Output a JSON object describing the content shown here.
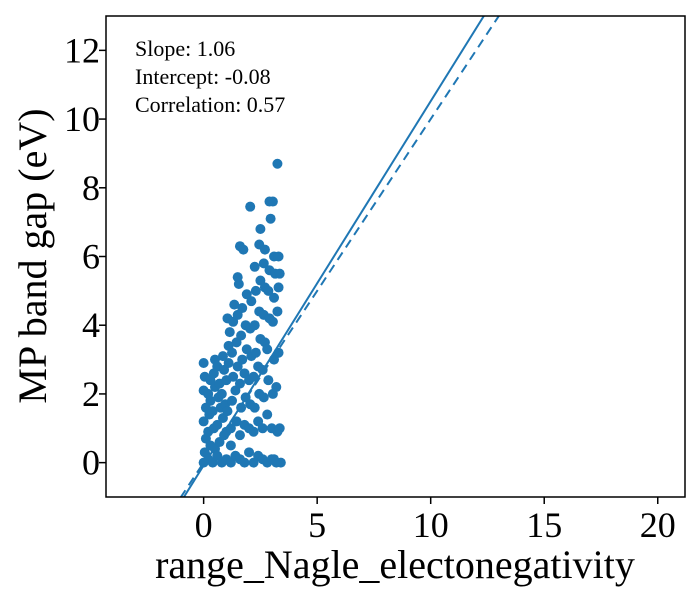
{
  "chart_data": {
    "type": "scatter",
    "title": "",
    "xlabel": "range_Nagle_electonegativity",
    "ylabel": "MP band gap (eV)",
    "xlim": [
      -4.3,
      21.2
    ],
    "ylim": [
      -1.0,
      13.0
    ],
    "x_ticks": [
      0,
      5,
      10,
      15,
      20
    ],
    "y_ticks": [
      0,
      2,
      4,
      6,
      8,
      10,
      12
    ],
    "grid": false,
    "legend": "none",
    "point_color": "#1f77b4",
    "annotations": [
      "Slope: 1.06",
      "Intercept: -0.08",
      "Correlation: 0.57"
    ],
    "fit_line": {
      "slope": 1.06,
      "intercept": -0.08,
      "style": "solid",
      "color": "#1f77b4"
    },
    "identity_line": {
      "slope": 1.0,
      "intercept": 0.0,
      "style": "dashed",
      "color": "#1f77b4"
    },
    "points": [
      [
        0.0,
        0.0
      ],
      [
        0.05,
        0.3
      ],
      [
        0.1,
        0.7
      ],
      [
        0.0,
        1.2
      ],
      [
        0.1,
        1.6
      ],
      [
        0.0,
        2.1
      ],
      [
        0.05,
        2.5
      ],
      [
        0.0,
        2.9
      ],
      [
        0.2,
        0.1
      ],
      [
        0.2,
        0.9
      ],
      [
        0.25,
        1.4
      ],
      [
        0.2,
        2.0
      ],
      [
        0.3,
        2.4
      ],
      [
        0.3,
        0.5
      ],
      [
        0.3,
        1.8
      ],
      [
        0.4,
        0.0
      ],
      [
        0.45,
        1.0
      ],
      [
        0.4,
        1.5
      ],
      [
        0.5,
        2.2
      ],
      [
        0.45,
        2.6
      ],
      [
        0.5,
        3.0
      ],
      [
        0.5,
        0.4
      ],
      [
        0.6,
        0.2
      ],
      [
        0.6,
        1.1
      ],
      [
        0.65,
        1.9
      ],
      [
        0.6,
        2.8
      ],
      [
        0.7,
        0.6
      ],
      [
        0.75,
        1.6
      ],
      [
        0.7,
        2.3
      ],
      [
        0.8,
        0.0
      ],
      [
        0.85,
        1.3
      ],
      [
        0.8,
        2.0
      ],
      [
        0.9,
        2.7
      ],
      [
        0.85,
        3.1
      ],
      [
        0.9,
        0.8
      ],
      [
        0.95,
        1.7
      ],
      [
        1.0,
        0.1
      ],
      [
        1.0,
        0.9
      ],
      [
        1.05,
        1.5
      ],
      [
        1.0,
        2.4
      ],
      [
        1.1,
        2.9
      ],
      [
        1.1,
        3.4
      ],
      [
        1.15,
        3.8
      ],
      [
        1.05,
        4.2
      ],
      [
        1.2,
        0.0
      ],
      [
        1.2,
        1.0
      ],
      [
        1.25,
        1.8
      ],
      [
        1.3,
        2.5
      ],
      [
        1.25,
        3.2
      ],
      [
        1.3,
        4.1
      ],
      [
        1.35,
        4.6
      ],
      [
        1.2,
        0.5
      ],
      [
        1.4,
        0.2
      ],
      [
        1.45,
        1.2
      ],
      [
        1.4,
        2.1
      ],
      [
        1.5,
        2.8
      ],
      [
        1.45,
        3.5
      ],
      [
        1.5,
        4.3
      ],
      [
        1.55,
        5.2
      ],
      [
        1.5,
        5.4
      ],
      [
        1.6,
        0.1
      ],
      [
        1.6,
        0.8
      ],
      [
        1.65,
        1.6
      ],
      [
        1.6,
        2.3
      ],
      [
        1.7,
        3.0
      ],
      [
        1.65,
        3.7
      ],
      [
        1.7,
        4.5
      ],
      [
        1.6,
        6.3
      ],
      [
        1.8,
        0.0
      ],
      [
        1.8,
        1.1
      ],
      [
        1.85,
        1.9
      ],
      [
        1.8,
        2.6
      ],
      [
        1.9,
        3.3
      ],
      [
        1.85,
        4.0
      ],
      [
        1.9,
        4.9
      ],
      [
        1.75,
        6.2
      ],
      [
        2.0,
        0.3
      ],
      [
        2.0,
        1.0
      ],
      [
        2.05,
        1.7
      ],
      [
        2.0,
        2.4
      ],
      [
        2.1,
        3.1
      ],
      [
        2.05,
        3.9
      ],
      [
        2.1,
        4.7
      ],
      [
        2.05,
        7.45
      ],
      [
        2.2,
        0.0
      ],
      [
        2.2,
        0.9
      ],
      [
        2.25,
        1.6
      ],
      [
        2.2,
        2.5
      ],
      [
        2.3,
        3.2
      ],
      [
        2.25,
        4.0
      ],
      [
        2.3,
        5.0
      ],
      [
        2.25,
        5.7
      ],
      [
        2.4,
        0.2
      ],
      [
        2.4,
        1.2
      ],
      [
        2.45,
        2.0
      ],
      [
        2.4,
        2.8
      ],
      [
        2.5,
        3.6
      ],
      [
        2.45,
        4.4
      ],
      [
        2.5,
        5.3
      ],
      [
        2.45,
        6.35
      ],
      [
        2.5,
        6.8
      ],
      [
        2.6,
        0.1
      ],
      [
        2.6,
        1.0
      ],
      [
        2.65,
        1.9
      ],
      [
        2.6,
        2.7
      ],
      [
        2.7,
        3.5
      ],
      [
        2.65,
        4.3
      ],
      [
        2.7,
        5.1
      ],
      [
        2.65,
        5.8
      ],
      [
        2.7,
        6.2
      ],
      [
        2.8,
        0.0
      ],
      [
        2.8,
        1.4
      ],
      [
        2.85,
        2.4
      ],
      [
        2.8,
        3.3
      ],
      [
        2.9,
        4.2
      ],
      [
        2.85,
        5.0
      ],
      [
        2.9,
        5.6
      ],
      [
        2.95,
        7.1
      ],
      [
        2.9,
        7.6
      ],
      [
        3.0,
        0.1
      ],
      [
        3.0,
        1.0
      ],
      [
        3.05,
        2.0
      ],
      [
        3.1,
        3.0
      ],
      [
        3.05,
        4.1
      ],
      [
        3.1,
        4.8
      ],
      [
        3.15,
        5.5
      ],
      [
        3.1,
        6.0
      ],
      [
        3.05,
        7.6
      ],
      [
        3.2,
        0.0
      ],
      [
        3.25,
        0.9
      ],
      [
        3.2,
        2.2
      ],
      [
        3.3,
        3.2
      ],
      [
        3.25,
        4.4
      ],
      [
        3.3,
        5.1
      ],
      [
        3.35,
        5.5
      ],
      [
        3.3,
        6.0
      ],
      [
        3.25,
        8.7
      ],
      [
        3.4,
        0.0
      ],
      [
        3.35,
        1.0
      ],
      [
        3.1,
        0.1
      ]
    ]
  }
}
